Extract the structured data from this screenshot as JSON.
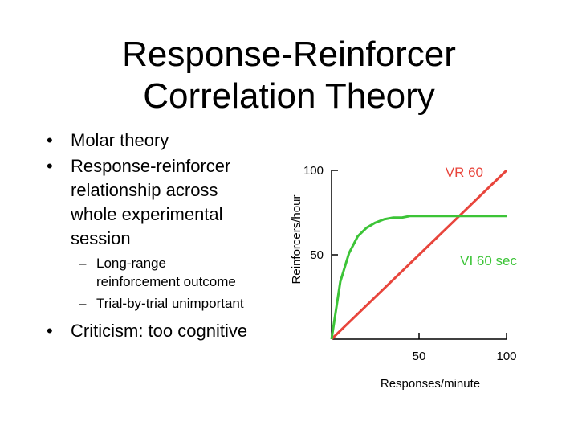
{
  "slide": {
    "title_line1": "Response-Reinforcer",
    "title_line2": "Correlation Theory",
    "bullets": [
      {
        "text": "Molar theory"
      },
      {
        "text": "Response-reinforcer",
        "cont": [
          "relationship across",
          "whole experimental",
          "session"
        ]
      },
      {
        "sub": [
          "Long-range",
          "reinforcement outcome"
        ]
      },
      {
        "sub": [
          "Trial-by-trial unimportant"
        ]
      },
      {
        "text": "Criticism: too cognitive"
      }
    ],
    "bullet_glyph": "•",
    "dash_glyph": "–"
  },
  "chart_data": {
    "type": "line",
    "xlabel": "Responses/minute",
    "ylabel": "Reinforcers/hour",
    "xlim": [
      0,
      100
    ],
    "ylim": [
      0,
      100
    ],
    "x_ticks": [
      50,
      100
    ],
    "y_ticks": [
      50,
      100
    ],
    "grid": false,
    "series": [
      {
        "name": "VR 60",
        "color": "#e8453c",
        "x": [
          0,
          100
        ],
        "y": [
          0,
          100
        ]
      },
      {
        "name": "VI 60 sec",
        "color": "#3cc437",
        "x": [
          0,
          5,
          10,
          15,
          20,
          25,
          30,
          35,
          40,
          45,
          50,
          55,
          60,
          65,
          70,
          75,
          80,
          85,
          90,
          95,
          100
        ],
        "y": [
          0,
          34,
          51,
          61,
          66,
          69,
          71,
          72,
          72,
          73,
          73,
          73,
          73,
          73,
          73,
          73,
          73,
          73,
          73,
          73,
          73
        ]
      }
    ]
  }
}
